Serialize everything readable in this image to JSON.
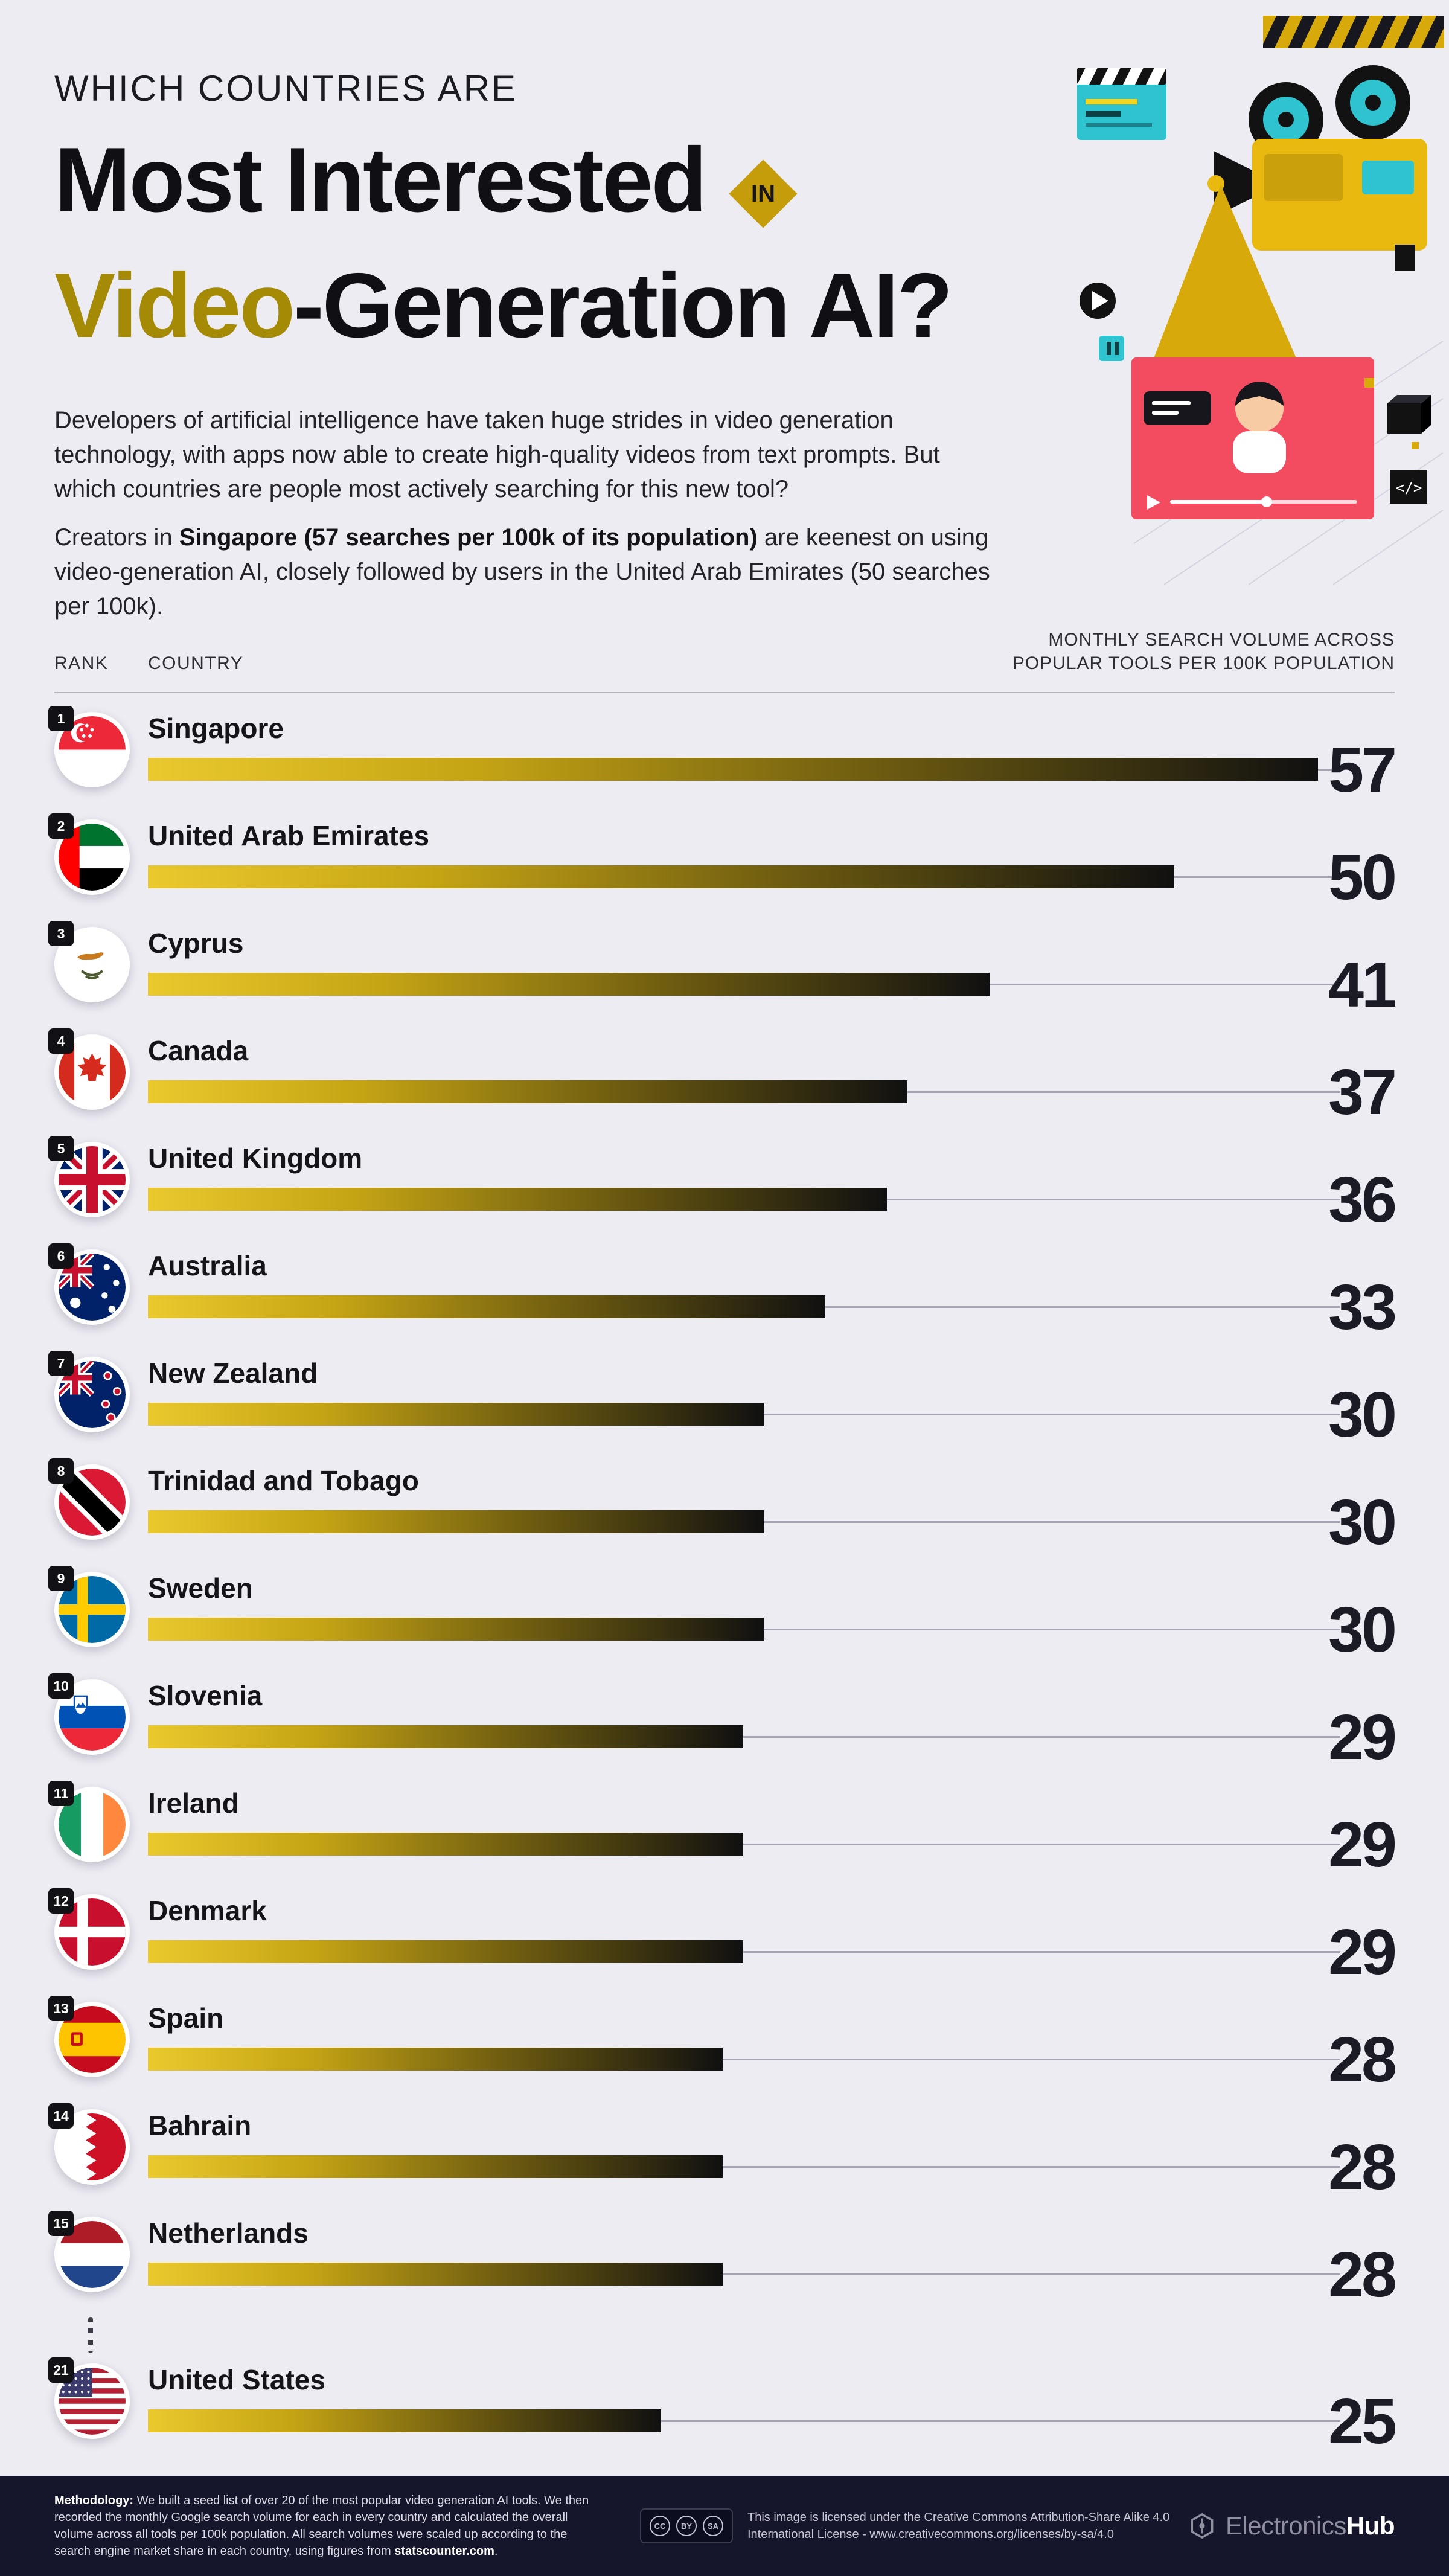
{
  "colors": {
    "background": "#edecf3",
    "gold": "#c59d0b",
    "gold_text": "#a58a06",
    "bar_gradient_start": "#eac92e",
    "bar_gradient_end": "#101010",
    "ink": "#141419",
    "footer_background": "#15152b",
    "teal_accent": "#2fc3cf",
    "red_accent": "#f34b60"
  },
  "header": {
    "kicker": "WHICH COUNTRIES ARE",
    "title_line1": "Most Interested",
    "in_badge": "IN",
    "title_highlight": "Video",
    "title_rest": "-Generation AI?",
    "intro": "Developers of artificial intelligence have taken huge strides in video generation technology, with apps now able to create high-quality videos from text prompts. But which countries are people most actively searching for this new tool?",
    "lead_prefix": "Creators in ",
    "lead_bold": "Singapore (57 searches per 100k of its population)",
    "lead_suffix": " are keenest on using video-generation AI, closely followed by users in the United Arab Emirates (50 searches per 100k)."
  },
  "table_header": {
    "rank": "RANK",
    "country": "COUNTRY",
    "value_line1": "MONTHLY SEARCH VOLUME ACROSS",
    "value_line2": "POPULAR TOOLS PER 100K POPULATION"
  },
  "chart_data": {
    "type": "bar",
    "title": "Which Countries Are Most Interested in Video-Generation AI?",
    "xlabel": "Monthly search volume across popular tools per 100k population",
    "ylabel": "Country",
    "xlim": [
      0,
      57
    ],
    "grid": false,
    "categories": [
      "Singapore",
      "United Arab Emirates",
      "Cyprus",
      "Canada",
      "United Kingdom",
      "Australia",
      "New Zealand",
      "Trinidad and Tobago",
      "Sweden",
      "Slovenia",
      "Ireland",
      "Denmark",
      "Spain",
      "Bahrain",
      "Netherlands",
      "United States"
    ],
    "ranks": [
      1,
      2,
      3,
      4,
      5,
      6,
      7,
      8,
      9,
      10,
      11,
      12,
      13,
      14,
      15,
      21
    ],
    "values": [
      57,
      50,
      41,
      37,
      36,
      33,
      30,
      30,
      30,
      29,
      29,
      29,
      28,
      28,
      28,
      25
    ]
  },
  "rows": [
    {
      "rank": 1,
      "country": "Singapore",
      "value": 57,
      "flag": "sg"
    },
    {
      "rank": 2,
      "country": "United Arab Emirates",
      "value": 50,
      "flag": "ae"
    },
    {
      "rank": 3,
      "country": "Cyprus",
      "value": 41,
      "flag": "cy"
    },
    {
      "rank": 4,
      "country": "Canada",
      "value": 37,
      "flag": "ca"
    },
    {
      "rank": 5,
      "country": "United Kingdom",
      "value": 36,
      "flag": "gb"
    },
    {
      "rank": 6,
      "country": "Australia",
      "value": 33,
      "flag": "au"
    },
    {
      "rank": 7,
      "country": "New Zealand",
      "value": 30,
      "flag": "nz"
    },
    {
      "rank": 8,
      "country": "Trinidad and Tobago",
      "value": 30,
      "flag": "tt"
    },
    {
      "rank": 9,
      "country": "Sweden",
      "value": 30,
      "flag": "se"
    },
    {
      "rank": 10,
      "country": "Slovenia",
      "value": 29,
      "flag": "si"
    },
    {
      "rank": 11,
      "country": "Ireland",
      "value": 29,
      "flag": "ie"
    },
    {
      "rank": 12,
      "country": "Denmark",
      "value": 29,
      "flag": "dk"
    },
    {
      "rank": 13,
      "country": "Spain",
      "value": 28,
      "flag": "es"
    },
    {
      "rank": 14,
      "country": "Bahrain",
      "value": 28,
      "flag": "bh"
    },
    {
      "rank": 15,
      "country": "Netherlands",
      "value": 28,
      "flag": "nl"
    },
    {
      "rank": 21,
      "country": "United States",
      "value": 25,
      "flag": "us"
    }
  ],
  "footer": {
    "methodology_label": "Methodology:",
    "methodology_text": " We built a seed list of over 20 of the most popular video generation AI tools. We then recorded the monthly Google search volume for each in every country and calculated the overall volume across all tools per 100k population. All search volumes were scaled up according to the search engine market share in each country, using figures from ",
    "methodology_bold_end": "statscounter.com",
    "methodology_period": ".",
    "cc_icons": [
      "CC",
      "BY",
      "SA"
    ],
    "license_line1": "This image is licensed under the Creative Commons Attribution-Share Alike 4.0",
    "license_line2": "International License - www.creativecommons.org/licenses/by-sa/4.0",
    "brand_gray": "Electronics",
    "brand_white": "Hub"
  }
}
